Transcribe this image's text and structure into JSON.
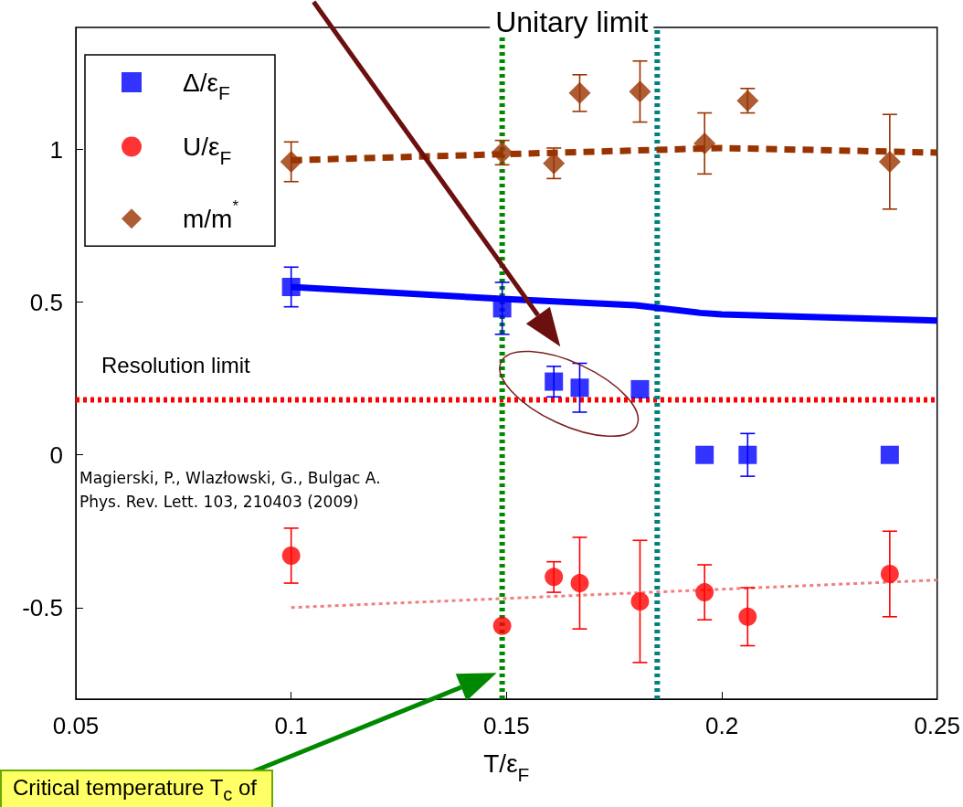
{
  "chart_data": {
    "type": "scatter",
    "xlabel": "T/ε$_{F}$",
    "xlim": [
      0.05,
      0.25
    ],
    "xticks": [
      0.05,
      0.1,
      0.15,
      0.2,
      0.25
    ],
    "ylim": [
      -0.8,
      1.4
    ],
    "yticks": [
      -0.5,
      0,
      0.5,
      1
    ],
    "grid": false,
    "legend": "top left",
    "series": [
      {
        "name": "Δ/ε$_{F}$",
        "marker": "square",
        "color": "#0000ff",
        "x": [
          0.1,
          0.149,
          0.161,
          0.167,
          0.181,
          0.196,
          0.206,
          0.239
        ],
        "values": [
          0.55,
          0.48,
          0.24,
          0.22,
          0.215,
          0,
          0,
          0
        ],
        "errors": [
          0.065,
          0.085,
          0.05,
          0.08,
          null,
          null,
          0.07,
          null
        ]
      },
      {
        "name": "U/ε$_{F}$",
        "marker": "circle",
        "color": "#ff0000",
        "x": [
          0.1,
          0.149,
          0.161,
          0.167,
          0.181,
          0.196,
          0.206,
          0.239
        ],
        "values": [
          -0.33,
          -0.56,
          -0.4,
          -0.42,
          -0.48,
          -0.45,
          -0.53,
          -0.39
        ],
        "errors": [
          0.09,
          null,
          0.05,
          0.15,
          0.2,
          0.09,
          0.095,
          0.14
        ]
      },
      {
        "name": "m/m$^{*}$",
        "marker": "diamond",
        "color": "#993300",
        "x": [
          0.1,
          0.149,
          0.161,
          0.167,
          0.181,
          0.196,
          0.206,
          0.239
        ],
        "values": [
          0.96,
          0.99,
          0.955,
          1.185,
          1.19,
          1.02,
          1.16,
          0.96
        ],
        "errors": [
          0.065,
          0.04,
          0.05,
          0.06,
          0.1,
          0.1,
          0.04,
          0.155
        ]
      },
      {
        "type": "line",
        "line_style": "solid",
        "color": "#0000ff",
        "x": [
          0.1,
          0.15,
          0.18,
          0.195,
          0.2,
          0.25
        ],
        "values": [
          0.55,
          0.51,
          0.49,
          0.465,
          0.46,
          0.44
        ]
      },
      {
        "type": "line",
        "line_style": "dashed",
        "color": "#993300",
        "x": [
          0.1,
          0.15,
          0.2,
          0.25
        ],
        "values": [
          0.965,
          0.985,
          1.005,
          0.99
        ]
      },
      {
        "type": "line",
        "line_style": "dotted",
        "color": "#f08080",
        "x": [
          0.1,
          0.25
        ],
        "values": [
          -0.5,
          -0.41
        ]
      }
    ],
    "ref_lines": [
      {
        "axis": "y",
        "value": 0.18,
        "label": "Resolution limit",
        "color": "#ff0000",
        "line_style": "dotted"
      },
      {
        "axis": "x",
        "value": 0.149,
        "color": "#008800",
        "line_style": "dotted"
      },
      {
        "axis": "x",
        "value": 0.185,
        "label": "Unitary limit",
        "color": "#008080",
        "line_style": "dotted"
      }
    ],
    "annotations": [
      "Magierski, P., Wlazłowski, G., Bulgac A.\nPhys. Rev. Lett. 103, 210403 (2009)",
      "Critical temperature T$_{c}$ of"
    ]
  }
}
